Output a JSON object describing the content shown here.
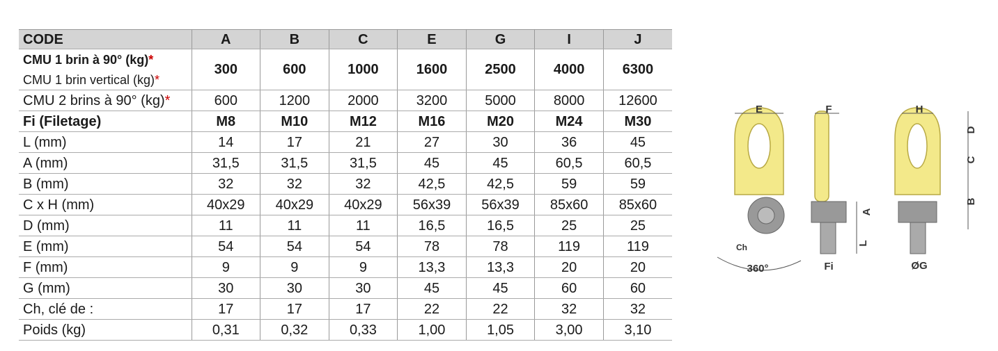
{
  "table": {
    "header": [
      "CODE",
      "A",
      "B",
      "C",
      "E",
      "G",
      "I",
      "J"
    ],
    "merged_row": {
      "labels": [
        "CMU 1 brin à 90° (kg)",
        "CMU 1 brin vertical (kg)"
      ],
      "notes": [
        "*",
        "*"
      ],
      "values": [
        "300",
        "600",
        "1000",
        "1600",
        "2500",
        "4000",
        "6300"
      ]
    },
    "rows": [
      {
        "label": "CMU 2 brins à 90° (kg)",
        "note": "*",
        "values": [
          "600",
          "1200",
          "2000",
          "3200",
          "5000",
          "8000",
          "12600"
        ]
      },
      {
        "label": "Fi (Filetage)",
        "bold": true,
        "values": [
          "M8",
          "M10",
          "M12",
          "M16",
          "M20",
          "M24",
          "M30"
        ]
      },
      {
        "label": "L (mm)",
        "values": [
          "14",
          "17",
          "21",
          "27",
          "30",
          "36",
          "45"
        ]
      },
      {
        "label": "A (mm)",
        "values": [
          "31,5",
          "31,5",
          "31,5",
          "45",
          "45",
          "60,5",
          "60,5"
        ]
      },
      {
        "label": "B (mm)",
        "values": [
          "32",
          "32",
          "32",
          "42,5",
          "42,5",
          "59",
          "59"
        ]
      },
      {
        "label": "C x H (mm)",
        "values": [
          "40x29",
          "40x29",
          "40x29",
          "56x39",
          "56x39",
          "85x60",
          "85x60"
        ]
      },
      {
        "label": "D (mm)",
        "values": [
          "11",
          "11",
          "11",
          "16,5",
          "16,5",
          "25",
          "25"
        ]
      },
      {
        "label": "E (mm)",
        "values": [
          "54",
          "54",
          "54",
          "78",
          "78",
          "119",
          "119"
        ]
      },
      {
        "label": "F (mm)",
        "values": [
          "9",
          "9",
          "9",
          "13,3",
          "13,3",
          "20",
          "20"
        ]
      },
      {
        "label": "G (mm)",
        "values": [
          "30",
          "30",
          "30",
          "45",
          "45",
          "60",
          "60"
        ]
      },
      {
        "label": "Ch, clé de :",
        "values": [
          "17",
          "17",
          "17",
          "22",
          "22",
          "32",
          "32"
        ]
      },
      {
        "label": "Poids (kg)",
        "values": [
          "0,31",
          "0,32",
          "0,33",
          "1,00",
          "1,05",
          "3,00",
          "3,10"
        ]
      }
    ]
  },
  "diagram": {
    "labels": {
      "E": "E",
      "F": "F",
      "H": "H",
      "D": "D",
      "C": "C",
      "B": "B",
      "A": "A",
      "L": "L",
      "Ch": "Ch",
      "rotation": "360°",
      "Fi": "Fi",
      "G": "ØG"
    }
  }
}
